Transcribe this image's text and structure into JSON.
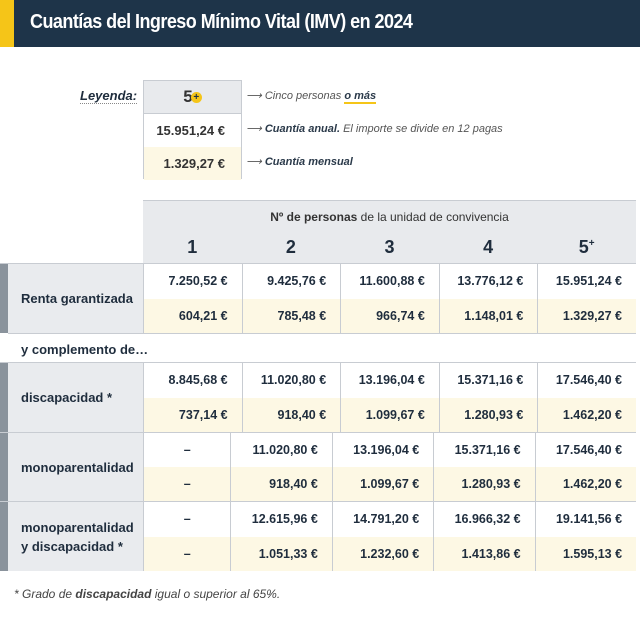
{
  "title": "Cuantías del Ingreso Mínimo Vital (IMV) en 2024",
  "legend": {
    "label": "Leyenda:",
    "header": "5",
    "header_sup": "+",
    "annual": "15.951,24 €",
    "monthly": "1.329,27 €",
    "header_desc": "Cinco personas",
    "header_desc_em": "o más",
    "annual_desc_b": "Cuantía anual.",
    "annual_desc": "El importe se divide en 12 pagas",
    "monthly_desc_b": "Cuantía mensual"
  },
  "table": {
    "caption_b": "Nº de personas",
    "caption": "de la unidad de convivencia",
    "columns": [
      "1",
      "2",
      "3",
      "4",
      "5"
    ],
    "last_sup": "+",
    "complement_label": "y complemento de…",
    "rows": [
      {
        "label": "Renta garantizada",
        "annual": [
          "7.250,52 €",
          "9.425,76 €",
          "11.600,88 €",
          "13.776,12 €",
          "15.951,24 €"
        ],
        "monthly": [
          "604,21 €",
          "785,48 €",
          "966,74 €",
          "1.148,01 €",
          "1.329,27 €"
        ]
      },
      {
        "label": "discapacidad *",
        "annual": [
          "8.845,68 €",
          "11.020,80 €",
          "13.196,04 €",
          "15.371,16 €",
          "17.546,40 €"
        ],
        "monthly": [
          "737,14 €",
          "918,40 €",
          "1.099,67 €",
          "1.280,93 €",
          "1.462,20 €"
        ]
      },
      {
        "label": "monoparentalidad",
        "annual": [
          "–",
          "11.020,80 €",
          "13.196,04 €",
          "15.371,16 €",
          "17.546,40 €"
        ],
        "monthly": [
          "–",
          "918,40 €",
          "1.099,67 €",
          "1.280,93 €",
          "1.462,20 €"
        ]
      },
      {
        "label": "monoparentalidad y discapacidad *",
        "annual": [
          "–",
          "12.615,96 €",
          "14.791,20 €",
          "16.966,32 €",
          "19.141,56 €"
        ],
        "monthly": [
          "–",
          "1.051,33 €",
          "1.232,60 €",
          "1.413,86 €",
          "1.595,13 €"
        ]
      }
    ]
  },
  "footnote": {
    "pre": "* Grado de",
    "b": "discapacidad",
    "post": "igual o superior al 65%."
  }
}
